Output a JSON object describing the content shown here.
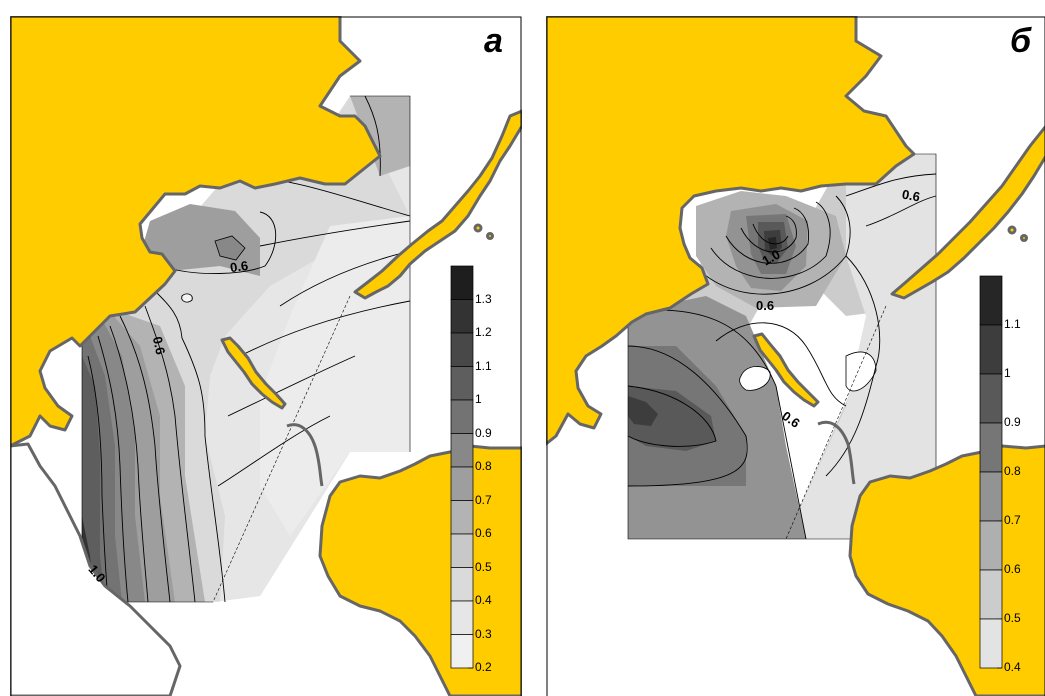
{
  "panels": [
    {
      "label": "а",
      "isolines": [
        "0.6",
        "0.6",
        "1.0"
      ],
      "colorbar": {
        "ticks": [
          "1.3",
          "1.2",
          "1.1",
          "1",
          "0.9",
          "0.8",
          "0.7",
          "0.6",
          "0.5",
          "0.4",
          "0.3",
          "0.2"
        ],
        "colors": [
          "#1e1e1e",
          "#333333",
          "#484848",
          "#5e5e5e",
          "#737373",
          "#888888",
          "#9e9e9e",
          "#b3b3b3",
          "#c8c8c8",
          "#dadada",
          "#e6e6e6",
          "#f0f0f0"
        ]
      }
    },
    {
      "label": "б",
      "isolines": [
        "0.6",
        "1.0",
        "0.6",
        "0.6"
      ],
      "colorbar": {
        "ticks": [
          "1.1",
          "1",
          "0.9",
          "0.8",
          "0.7",
          "0.6",
          "0.5",
          "0.4"
        ],
        "colors": [
          "#262626",
          "#3d3d3d",
          "#595959",
          "#767676",
          "#939393",
          "#afafaf",
          "#cccccc",
          "#e3e3e3"
        ]
      }
    }
  ],
  "colors": {
    "land": "#ffcc00",
    "coast": "#666666"
  }
}
